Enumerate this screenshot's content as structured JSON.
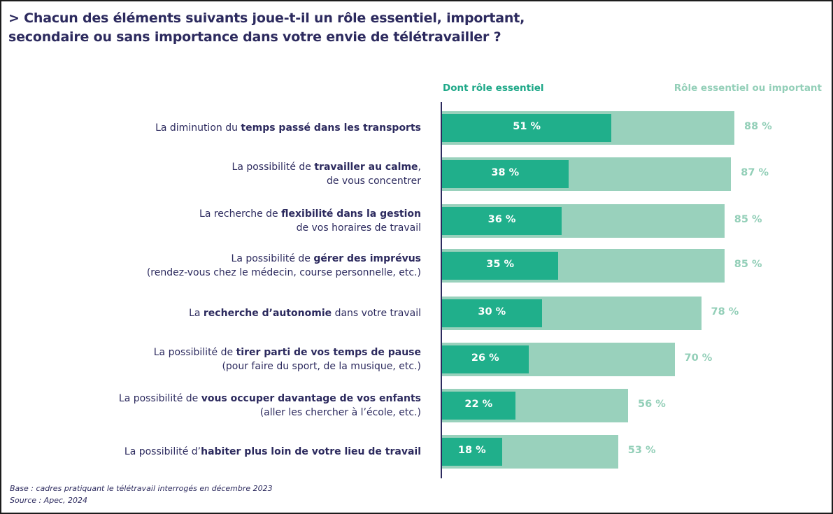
{
  "header": {
    "title_line1": "> Chacun des éléments suivants joue-t-il un rôle essentiel, important,",
    "title_line2": "secondaire ou sans importance dans votre envie de télétravailler ?"
  },
  "footer": {
    "base": "Base : cadres pratiquant le télétravail interrogés en décembre 2023",
    "source": "Source : Apec, 2024"
  },
  "colors": {
    "essential": "#20af8b",
    "essential_or_important": "#99d1bc",
    "title": "#2c2a5e"
  },
  "chart_data": {
    "type": "bar",
    "orientation": "horizontal",
    "value_unit": "%",
    "legend_placement": "top",
    "xlim": [
      0,
      100
    ],
    "series": [
      {
        "name": "Dont rôle essentiel",
        "color": "#20af8b",
        "values": [
          51,
          38,
          36,
          35,
          30,
          26,
          22,
          18
        ]
      },
      {
        "name": "Rôle essentiel ou important",
        "color": "#99d1bc",
        "values": [
          88,
          87,
          85,
          85,
          78,
          70,
          56,
          53
        ]
      }
    ],
    "value_labels": {
      "essential": [
        "51 %",
        "38 %",
        "36 %",
        "35 %",
        "30 %",
        "26 %",
        "22 %",
        "18 %"
      ],
      "essential_or_important": [
        "88 %",
        "87 %",
        "85 %",
        "85 %",
        "78 %",
        "70 %",
        "56 %",
        "53 %"
      ]
    },
    "categories": [
      {
        "lines": [
          [
            {
              "t": "La diminution du ",
              "b": false
            },
            {
              "t": "temps passé dans les transports",
              "b": true
            }
          ]
        ]
      },
      {
        "lines": [
          [
            {
              "t": "La possibilité de ",
              "b": false
            },
            {
              "t": "travailler au calme",
              "b": true
            },
            {
              "t": ",",
              "b": false
            }
          ],
          [
            {
              "t": "de vous concentrer",
              "b": false
            }
          ]
        ]
      },
      {
        "lines": [
          [
            {
              "t": "La recherche de ",
              "b": false
            },
            {
              "t": "flexibilité dans la gestion",
              "b": true
            }
          ],
          [
            {
              "t": "de vos horaires de travail",
              "b": false
            }
          ]
        ]
      },
      {
        "lines": [
          [
            {
              "t": "La possibilité de ",
              "b": false
            },
            {
              "t": "gérer des imprévus",
              "b": true
            }
          ],
          [
            {
              "t": "(rendez-vous chez le médecin, course personnelle, etc.)",
              "b": false
            }
          ]
        ]
      },
      {
        "lines": [
          [
            {
              "t": "La ",
              "b": false
            },
            {
              "t": "recherche d’autonomie",
              "b": true
            },
            {
              "t": " dans votre travail",
              "b": false
            }
          ]
        ]
      },
      {
        "lines": [
          [
            {
              "t": "La possibilité de ",
              "b": false
            },
            {
              "t": "tirer parti de vos temps de pause",
              "b": true
            }
          ],
          [
            {
              "t": "(pour faire du sport, de la musique, etc.)",
              "b": false
            }
          ]
        ]
      },
      {
        "lines": [
          [
            {
              "t": "La possibilité de ",
              "b": false
            },
            {
              "t": "vous occuper davantage de vos enfants",
              "b": true
            }
          ],
          [
            {
              "t": "(aller les chercher à l’école, etc.)",
              "b": false
            }
          ]
        ]
      },
      {
        "lines": [
          [
            {
              "t": "La possibilité d’",
              "b": false
            },
            {
              "t": "habiter plus loin de votre lieu de travail",
              "b": true
            }
          ]
        ]
      }
    ]
  }
}
